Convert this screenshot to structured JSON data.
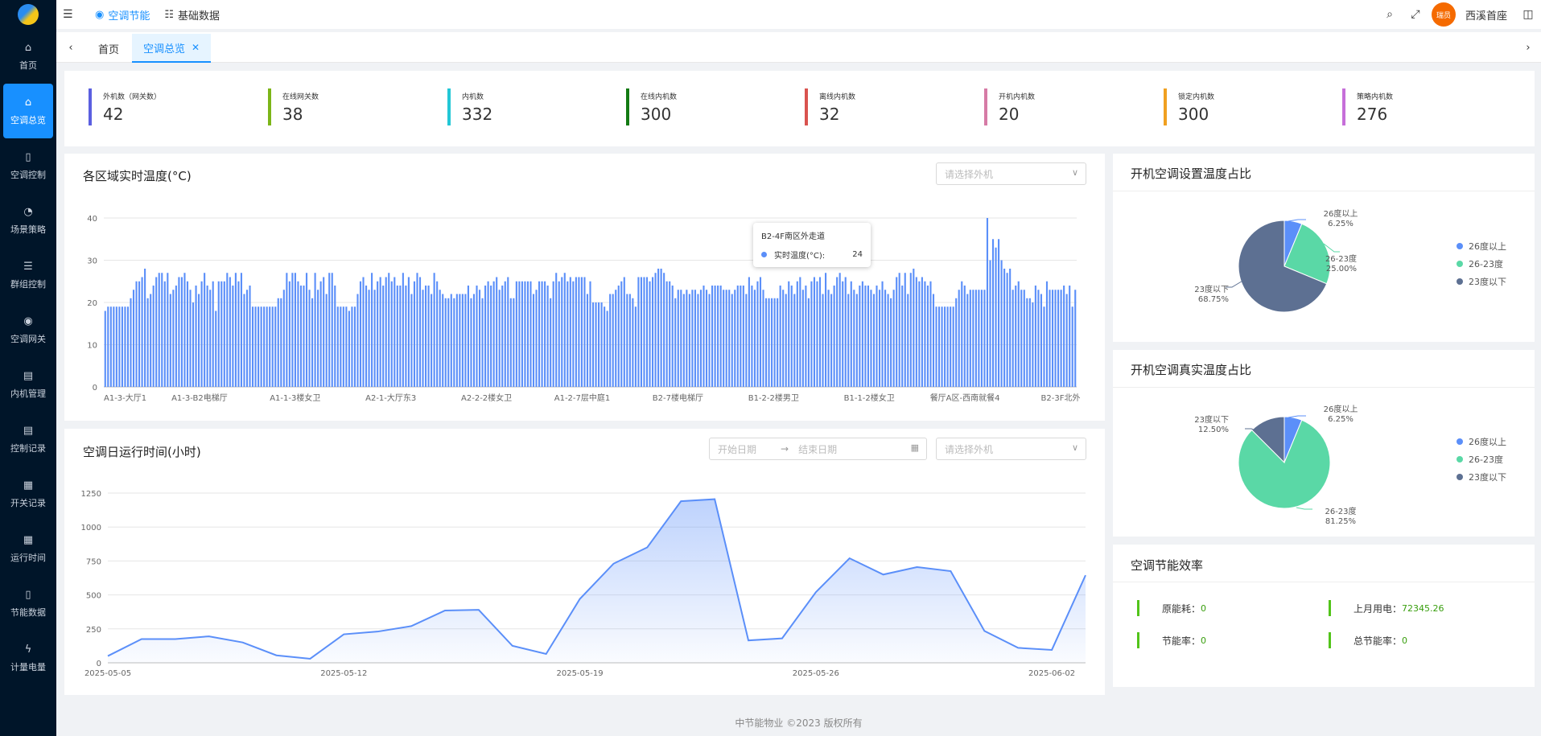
{
  "topbar": {
    "tab1": "空调节能",
    "tab2": "基础数据",
    "avatar_text": "瑞员",
    "username": "西溪首座"
  },
  "sidebar": {
    "items": [
      {
        "label": "首页",
        "icon": "home-icon",
        "glyph": "⌂"
      },
      {
        "label": "空调总览",
        "icon": "home-icon",
        "glyph": "⌂"
      },
      {
        "label": "空调控制",
        "icon": "document-icon",
        "glyph": "▯"
      },
      {
        "label": "场景策略",
        "icon": "gauge-icon",
        "glyph": "◔"
      },
      {
        "label": "群组控制",
        "icon": "list-icon",
        "glyph": "☰"
      },
      {
        "label": "空调网关",
        "icon": "eye-icon",
        "glyph": "◉"
      },
      {
        "label": "内机管理",
        "icon": "notebook-icon",
        "glyph": "▤"
      },
      {
        "label": "控制记录",
        "icon": "record-icon",
        "glyph": "▤"
      },
      {
        "label": "开关记录",
        "icon": "table-icon",
        "glyph": "▦"
      },
      {
        "label": "运行时间",
        "icon": "table-icon",
        "glyph": "▦"
      },
      {
        "label": "节能数据",
        "icon": "file-icon",
        "glyph": "▯"
      },
      {
        "label": "计量电量",
        "icon": "lightning-icon",
        "glyph": "ϟ"
      }
    ]
  },
  "tags": {
    "home": "首页",
    "current": "空调总览"
  },
  "stats": [
    {
      "label": "外机数（网关数）",
      "value": "42",
      "color": "#5b5fe0"
    },
    {
      "label": "在线网关数",
      "value": "38",
      "color": "#7cb518"
    },
    {
      "label": "内机数",
      "value": "332",
      "color": "#22c7d6"
    },
    {
      "label": "在线内机数",
      "value": "300",
      "color": "#137a13"
    },
    {
      "label": "离线内机数",
      "value": "32",
      "color": "#d9534f"
    },
    {
      "label": "开机内机数",
      "value": "20",
      "color": "#d67ba6"
    },
    {
      "label": "锁定内机数",
      "value": "300",
      "color": "#f0a020"
    },
    {
      "label": "策略内机数",
      "value": "276",
      "color": "#c66fd9"
    }
  ],
  "temp_card": {
    "title": "各区域实时温度(°C)",
    "select_placeholder": "请选择外机"
  },
  "tooltip": {
    "title": "B2-4F南区外走道",
    "series": "实时温度(°C):",
    "value": "24"
  },
  "runtime_card": {
    "title": "空调日运行时间(小时)",
    "start_placeholder": "开始日期",
    "end_placeholder": "结束日期",
    "select_placeholder": "请选择外机"
  },
  "pie1": {
    "title": "开机空调设置温度占比"
  },
  "pie2": {
    "title": "开机空调真实温度占比"
  },
  "efficiency": {
    "title": "空调节能效率",
    "items": [
      {
        "label": "原能耗：",
        "value": "0"
      },
      {
        "label": "上月用电：",
        "value": "72345.26"
      },
      {
        "label": "节能率：",
        "value": "0"
      },
      {
        "label": "总节能率：",
        "value": "0"
      }
    ]
  },
  "footer": "中节能物业 ©2023 版权所有",
  "colors": {
    "primary": "#1890ff",
    "sidebar": "#001529",
    "bar": "#5b8ff9",
    "pie_blue": "#5b8ff9",
    "pie_green": "#5ad8a6",
    "pie_slate": "#5d7092"
  },
  "chart_data": [
    {
      "type": "bar",
      "title": "各区域实时温度(°C)",
      "xlabel": "",
      "ylabel": "",
      "ylim": [
        0,
        40
      ],
      "yticks": [
        0,
        10,
        20,
        30,
        40
      ],
      "grid": true,
      "tick_labels": [
        "A1-3-大厅1",
        "A1-3-B2电梯厅",
        "A1-1-3楼女卫",
        "A2-1-大厅东3",
        "A2-2-2楼女卫",
        "A1-2-7层中庭1",
        "B2-7楼电梯厅",
        "B1-2-2楼男卫",
        "B1-1-2楼女卫",
        "餐厅A区-西南就餐4",
        "B2-3F北外"
      ],
      "values": [
        18,
        19,
        19,
        19,
        19,
        19,
        19,
        19,
        19,
        21,
        23,
        25,
        25,
        26,
        28,
        21,
        22,
        24,
        26,
        27,
        27,
        25,
        27,
        22,
        23,
        24,
        26,
        26,
        27,
        25,
        23,
        20,
        24,
        22,
        25,
        27,
        24,
        23,
        25,
        18,
        25,
        25,
        25,
        27,
        26,
        24,
        27,
        25,
        27,
        22,
        23,
        24,
        19,
        19,
        19,
        19,
        19,
        19,
        19,
        19,
        19,
        21,
        21,
        23,
        27,
        25,
        27,
        27,
        25,
        24,
        24,
        27,
        23,
        21,
        27,
        23,
        25,
        26,
        22,
        27,
        27,
        24,
        19,
        19,
        19,
        19,
        18,
        19,
        19,
        22,
        25,
        26,
        24,
        23,
        27,
        23,
        25,
        26,
        24,
        26,
        27,
        25,
        26,
        24,
        24,
        27,
        24,
        26,
        22,
        25,
        27,
        26,
        23,
        24,
        24,
        22,
        27,
        25,
        23,
        22,
        21,
        21,
        22,
        21,
        22,
        22,
        22,
        22,
        24,
        21,
        22,
        24,
        23,
        21,
        24,
        25,
        24,
        25,
        26,
        23,
        24,
        25,
        26,
        21,
        21,
        25,
        25,
        25,
        25,
        25,
        25,
        22,
        23,
        25,
        25,
        25,
        24,
        21,
        25,
        27,
        25,
        26,
        27,
        25,
        26,
        25,
        26,
        26,
        26,
        26,
        22,
        25,
        20,
        20,
        20,
        20,
        19,
        18,
        22,
        22,
        23,
        24,
        25,
        26,
        22,
        22,
        21,
        19,
        26,
        26,
        26,
        26,
        25,
        26,
        27,
        28,
        28,
        27,
        25,
        25,
        24,
        21,
        23,
        23,
        22,
        23,
        22,
        23,
        23,
        22,
        23,
        24,
        23,
        22,
        24,
        24,
        24,
        24,
        23,
        23,
        23,
        22,
        23,
        24,
        24,
        24,
        22,
        26,
        24,
        23,
        25,
        26,
        23,
        21,
        21,
        21,
        21,
        21,
        24,
        23,
        22,
        25,
        24,
        22,
        25,
        26,
        23,
        24,
        21,
        25,
        26,
        25,
        26,
        22,
        27,
        23,
        22,
        24,
        26,
        27,
        25,
        26,
        22,
        25,
        23,
        22,
        24,
        25,
        24,
        24,
        23,
        22,
        24,
        23,
        25,
        23,
        22,
        21,
        23,
        26,
        27,
        24,
        27,
        22,
        27,
        28,
        26,
        25,
        26,
        25,
        24,
        25,
        22,
        19,
        19,
        19,
        19,
        19,
        19,
        19,
        21,
        23,
        25,
        24,
        22,
        23,
        23,
        23,
        23,
        23,
        23,
        40,
        30,
        35,
        33,
        35,
        30,
        28,
        27,
        28,
        23,
        24,
        25,
        23,
        23,
        21,
        21,
        20,
        24,
        23,
        22,
        19,
        25,
        23,
        23,
        23,
        23,
        23,
        24,
        22,
        24,
        19,
        23
      ]
    },
    {
      "type": "area",
      "title": "空调日运行时间(小时)",
      "xlabel": "",
      "ylabel": "",
      "ylim": [
        0,
        1250
      ],
      "yticks": [
        0,
        250,
        500,
        750,
        1000,
        1250
      ],
      "grid": true,
      "x_tick_labels": [
        "2025-05-05",
        "2025-05-12",
        "2025-05-19",
        "2025-05-26",
        "2025-06-02"
      ],
      "x": [
        "2025-05-05",
        "2025-05-06",
        "2025-05-07",
        "2025-05-08",
        "2025-05-09",
        "2025-05-10",
        "2025-05-11",
        "2025-05-12",
        "2025-05-13",
        "2025-05-14",
        "2025-05-15",
        "2025-05-16",
        "2025-05-17",
        "2025-05-18",
        "2025-05-19",
        "2025-05-20",
        "2025-05-21",
        "2025-05-22",
        "2025-05-23",
        "2025-05-24",
        "2025-05-25",
        "2025-05-26",
        "2025-05-27",
        "2025-05-28",
        "2025-05-29",
        "2025-05-30",
        "2025-05-31",
        "2025-06-01",
        "2025-06-02",
        "2025-06-03"
      ],
      "values": [
        50,
        175,
        175,
        195,
        150,
        55,
        30,
        210,
        230,
        270,
        385,
        390,
        125,
        65,
        470,
        730,
        850,
        1190,
        1205,
        165,
        180,
        520,
        770,
        650,
        705,
        675,
        235,
        110,
        95,
        645
      ]
    },
    {
      "type": "pie",
      "title": "开机空调设置温度占比",
      "labels": [
        "26度以上",
        "26-23度",
        "23度以下"
      ],
      "values": [
        6.25,
        25.0,
        68.75
      ],
      "value_labels": [
        "6.25%",
        "25.00%",
        "68.75%"
      ],
      "legend": "right"
    },
    {
      "type": "pie",
      "title": "开机空调真实温度占比",
      "labels": [
        "26度以上",
        "26-23度",
        "23度以下"
      ],
      "values": [
        6.25,
        81.25,
        12.5
      ],
      "value_labels": [
        "6.25%",
        "81.25%",
        "12.50%"
      ],
      "legend": "right"
    }
  ]
}
